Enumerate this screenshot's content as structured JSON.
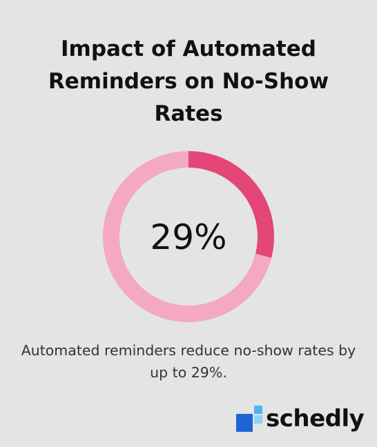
{
  "title": "Impact of Automated Reminders on No-Show Rates",
  "caption": "Automated reminders reduce no-show rates by up to 29%.",
  "brand": {
    "name": "schedly",
    "colors": {
      "dark_blue": "#1f63d6",
      "light_blue": "#4fb4ea",
      "sky_blue": "#8fd0f5"
    }
  },
  "colors": {
    "background": "#e3e4e3",
    "highlight": "#e34677",
    "remainder": "#f4a9c1"
  },
  "chart_data": {
    "type": "pie",
    "style": "donut",
    "center_label": "29%",
    "slices": [
      {
        "value": 29,
        "color": "#e34677"
      },
      {
        "value": 71,
        "color": "#f4a9c1"
      }
    ]
  }
}
